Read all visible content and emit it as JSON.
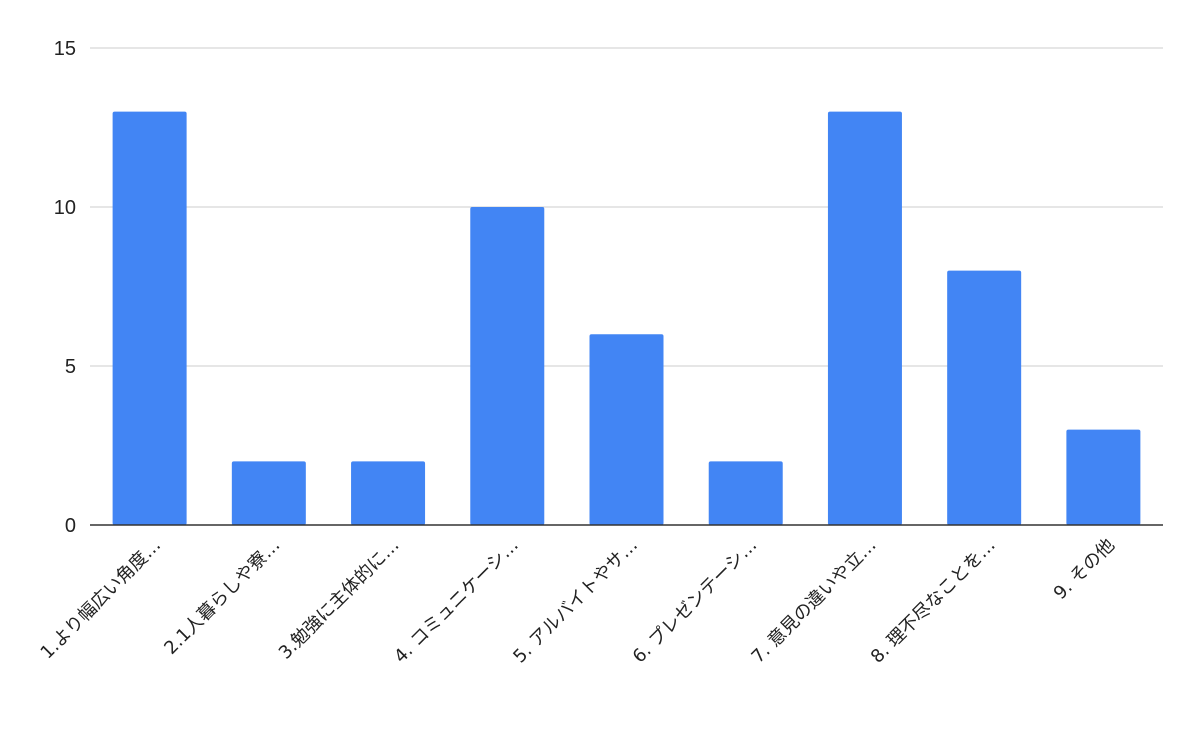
{
  "chart_data": {
    "type": "bar",
    "categories": [
      "1.より幅広い角度…",
      "2.1人暮らしや寮…",
      "3.勉強に主体的に…",
      "4. コミュニケーシ…",
      "5. アルバイトやサ…",
      "6. プレゼンテーシ…",
      "7. 意見の違いや立…",
      "8. 理不尽なことを…",
      "9. その他"
    ],
    "values": [
      13,
      2,
      2,
      10,
      6,
      2,
      13,
      8,
      3
    ],
    "ylim": [
      0,
      15
    ],
    "yticks": [
      0,
      5,
      10,
      15
    ],
    "grid": true,
    "legend": "none",
    "colors": {
      "bar": "#4285f4",
      "grid": "#cccccc",
      "axis": "#333333",
      "text": "#222222"
    }
  }
}
